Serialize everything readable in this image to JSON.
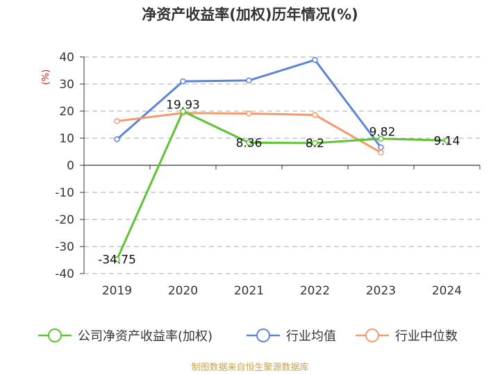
{
  "chart_data": {
    "type": "line",
    "title": "净资产收益率(加权)历年情况(%)",
    "ylabel": "(%)",
    "xlabel": "",
    "categories": [
      "2019",
      "2020",
      "2021",
      "2022",
      "2023",
      "2024"
    ],
    "ylim": [
      -40,
      40
    ],
    "yticks": [
      40,
      30,
      20,
      10,
      0,
      -10,
      -20,
      -30,
      -40
    ],
    "grid": true,
    "legend_position": "bottom",
    "series": [
      {
        "name": "公司净资产收益率(加权)",
        "color": "#5cc332",
        "values": [
          -34.75,
          19.93,
          8.36,
          8.2,
          9.82,
          9.14
        ],
        "labels": [
          "-34.75",
          "19.93",
          "8.36",
          "8.2",
          "9.82",
          "9.14"
        ]
      },
      {
        "name": "行业均值",
        "color": "#5b84d9",
        "values": [
          9.6,
          31.0,
          31.3,
          38.9,
          6.6,
          null
        ]
      },
      {
        "name": "行业中位数",
        "color": "#f39a6b",
        "values": [
          16.3,
          19.3,
          19.1,
          18.6,
          4.7,
          null
        ]
      }
    ]
  },
  "source": "制图数据来自恒生聚源数据库"
}
